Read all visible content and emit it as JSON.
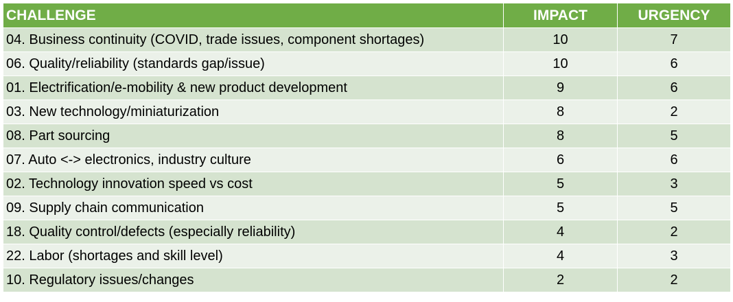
{
  "colors": {
    "header_bg": "#70ad47",
    "row_dark": "#d5e3cf",
    "row_light": "#ebf1e9",
    "border": "#ffffff"
  },
  "chart_data": {
    "type": "table",
    "columns": [
      "CHALLENGE",
      "IMPACT",
      "URGENCY"
    ],
    "rows": [
      {
        "challenge": "04. Business continuity (COVID, trade issues, component shortages)",
        "impact": "10",
        "urgency": "7"
      },
      {
        "challenge": "06. Quality/reliability (standards gap/issue)",
        "impact": "10",
        "urgency": "6"
      },
      {
        "challenge": "01. Electrification/e-mobility & new product development",
        "impact": "9",
        "urgency": "6"
      },
      {
        "challenge": "03. New technology/miniaturization",
        "impact": "8",
        "urgency": "2"
      },
      {
        "challenge": "08. Part sourcing",
        "impact": "8",
        "urgency": "5"
      },
      {
        "challenge": "07. Auto <-> electronics, industry culture",
        "impact": "6",
        "urgency": "6"
      },
      {
        "challenge": "02. Technology innovation speed vs cost",
        "impact": "5",
        "urgency": "3"
      },
      {
        "challenge": "09. Supply chain communication",
        "impact": "5",
        "urgency": "5"
      },
      {
        "challenge": "18. Quality control/defects (especially reliability)",
        "impact": "4",
        "urgency": "2"
      },
      {
        "challenge": "22. Labor (shortages and skill level)",
        "impact": "4",
        "urgency": "3"
      },
      {
        "challenge": "10. Regulatory issues/changes",
        "impact": "2",
        "urgency": "2"
      }
    ]
  }
}
